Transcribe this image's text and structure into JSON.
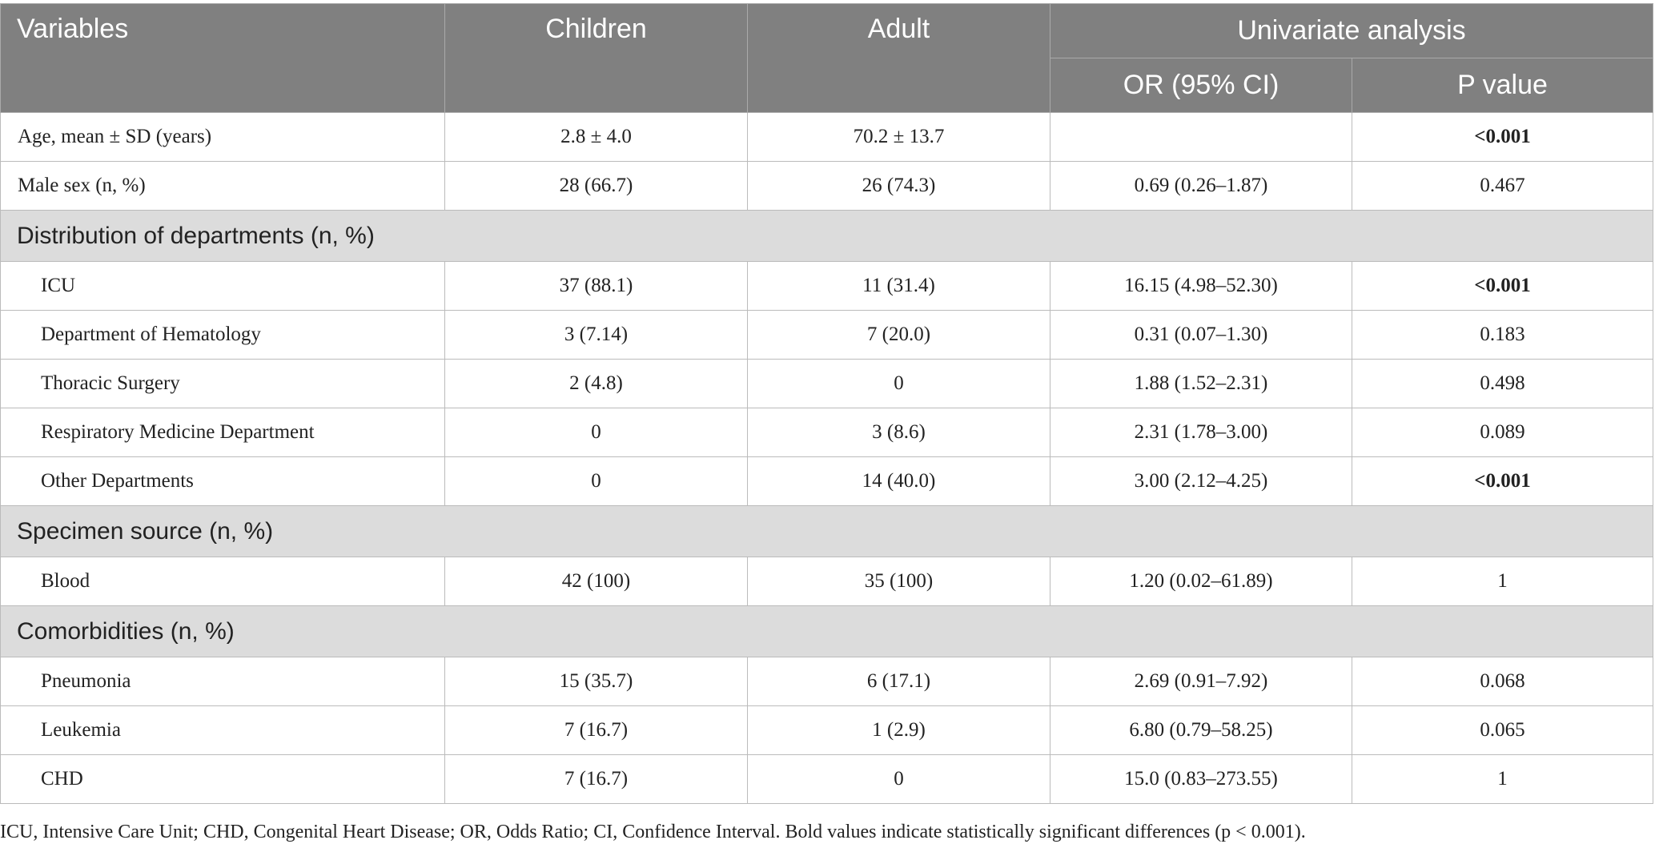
{
  "header": {
    "variables": "Variables",
    "children": "Children",
    "adult": "Adult",
    "group": "Univariate analysis",
    "or": "OR (95% CI)",
    "p": "P value"
  },
  "rows": [
    {
      "label": "Age, mean ± SD (years)",
      "children": "2.8 ± 4.0",
      "adult": "70.2 ± 13.7",
      "p": "<0.001",
      "significant": true
    },
    {
      "label": "Male sex (n, %)",
      "children": "28 (66.7)",
      "adult": "26 (74.3)",
      "or": "0.69 (0.26–1.87)",
      "p": "0.467"
    },
    {
      "section": "Distribution of departments (n, %)"
    },
    {
      "label": "ICU",
      "children": "37 (88.1)",
      "adult": "11 (31.4)",
      "or": "16.15 (4.98–52.30)",
      "p": "<0.001",
      "significant": true,
      "indent": true
    },
    {
      "label": "Department of Hematology",
      "children": "3 (7.14)",
      "adult": "7 (20.0)",
      "or": "0.31 (0.07–1.30)",
      "p": "0.183",
      "indent": true
    },
    {
      "label": "Thoracic Surgery",
      "children": "2 (4.8)",
      "adult": "0",
      "or": "1.88 (1.52–2.31)",
      "p": "0.498",
      "indent": true
    },
    {
      "label": "Respiratory Medicine Department",
      "children": "0",
      "adult": "3 (8.6)",
      "or": "2.31 (1.78–3.00)",
      "p": "0.089",
      "indent": true
    },
    {
      "label": "Other Departments",
      "children": "0",
      "adult": "14 (40.0)",
      "or": "3.00 (2.12–4.25)",
      "p": "<0.001",
      "significant": true,
      "indent": true
    },
    {
      "section": "Specimen source (n, %)"
    },
    {
      "label": "Blood",
      "children": "42 (100)",
      "adult": "35 (100)",
      "or": "1.20 (0.02–61.89)",
      "p": "1",
      "indent": true
    },
    {
      "section": "Comorbidities (n, %)"
    },
    {
      "label": "Pneumonia",
      "children": "15 (35.7)",
      "adult": "6 (17.1)",
      "or": "2.69 (0.91–7.92)",
      "p": "0.068",
      "indent": true
    },
    {
      "label": "Leukemia",
      "children": "7 (16.7)",
      "adult": "1 (2.9)",
      "or": "6.80 (0.79–58.25)",
      "p": "0.065",
      "indent": true
    },
    {
      "label": "CHD",
      "children": "7 (16.7)",
      "adult": "0",
      "or": "15.0 (0.83–273.55)",
      "p": "1",
      "indent": true
    }
  ],
  "footnote": "ICU, Intensive Care Unit; CHD, Congenital Heart Disease; OR, Odds Ratio; CI, Confidence Interval. Bold values indicate statistically significant differences (p < 0.001)."
}
